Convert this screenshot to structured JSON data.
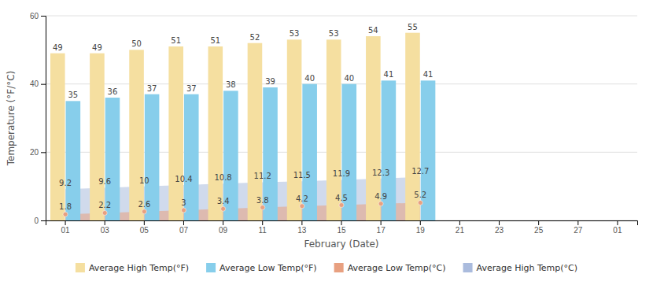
{
  "chart_data": {
    "type": "bar",
    "xlabel": "February (Date)",
    "ylabel": "Temperature (°F/°C)",
    "categories": [
      "01",
      "03",
      "05",
      "07",
      "09",
      "11",
      "13",
      "15",
      "17",
      "19",
      "21",
      "23",
      "25",
      "27",
      "01"
    ],
    "series": [
      {
        "name": "Average High Temp(°F)",
        "type": "bar",
        "color": "#F5DFA0",
        "values": [
          49,
          49,
          50,
          51,
          51,
          52,
          53,
          53,
          54,
          55,
          null,
          null,
          null,
          null,
          null
        ]
      },
      {
        "name": "Average Low Temp(°F)",
        "type": "bar",
        "color": "#87CEEB",
        "values": [
          35,
          36,
          37,
          37,
          38,
          39,
          40,
          40,
          41,
          41,
          null,
          null,
          null,
          null,
          null
        ]
      },
      {
        "name": "Average Low Temp(°C)",
        "type": "area",
        "color": "#E8A080",
        "marker": "circle",
        "values": [
          1.8,
          2.2,
          2.6,
          3.0,
          3.4,
          3.8,
          4.2,
          4.5,
          4.9,
          5.2,
          null,
          null,
          null,
          null,
          null
        ]
      },
      {
        "name": "Average High Temp(°C)",
        "type": "area",
        "color": "#AABBDD",
        "values": [
          9.2,
          9.6,
          10.0,
          10.4,
          10.8,
          11.2,
          11.5,
          11.9,
          12.3,
          12.7,
          null,
          null,
          null,
          null,
          null
        ]
      }
    ],
    "ylim": [
      0,
      60
    ],
    "yticks": [
      0,
      20,
      40,
      60
    ],
    "grid": true,
    "legend": "bottom",
    "data_labels": true
  }
}
